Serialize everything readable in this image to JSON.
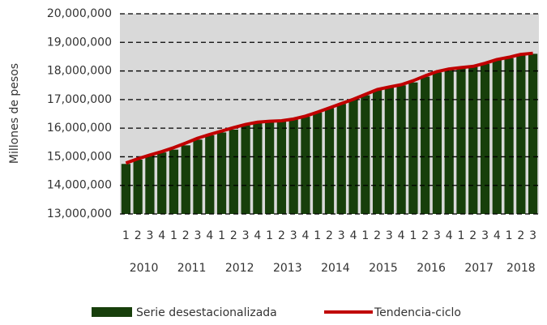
{
  "chart_data": {
    "type": "bar",
    "ylabel": "Millones de pesos",
    "categories": [
      "1",
      "2",
      "3",
      "4",
      "1",
      "2",
      "3",
      "4",
      "1",
      "2",
      "3",
      "4",
      "1",
      "2",
      "3",
      "4",
      "1",
      "2",
      "3",
      "4",
      "1",
      "2",
      "3",
      "4",
      "1",
      "2",
      "3",
      "4",
      "1",
      "2",
      "3",
      "4",
      "1",
      "2",
      "3"
    ],
    "years": [
      "2010",
      "2011",
      "2012",
      "2013",
      "2014",
      "2015",
      "2016",
      "2017",
      "2018"
    ],
    "series": [
      {
        "name": "Serie desestacionalizada",
        "type": "bar",
        "color": "#173f0b",
        "values": [
          14750000,
          14900000,
          15050000,
          15150000,
          15250000,
          15400000,
          15600000,
          15750000,
          15850000,
          15950000,
          16100000,
          16200000,
          16200000,
          16250000,
          16300000,
          16400000,
          16550000,
          16700000,
          16850000,
          17000000,
          17150000,
          17350000,
          17450000,
          17500000,
          17600000,
          17800000,
          17950000,
          18050000,
          18100000,
          18150000,
          18250000,
          18400000,
          18450000,
          18550000,
          18600000
        ]
      },
      {
        "name": "Tendencia-ciclo",
        "type": "line",
        "color": "#c00000",
        "values": [
          14780000,
          14930000,
          15060000,
          15180000,
          15320000,
          15480000,
          15650000,
          15780000,
          15900000,
          16020000,
          16130000,
          16210000,
          16240000,
          16260000,
          16320000,
          16420000,
          16560000,
          16710000,
          16860000,
          17010000,
          17180000,
          17350000,
          17440000,
          17520000,
          17660000,
          17830000,
          17980000,
          18070000,
          18120000,
          18160000,
          18270000,
          18400000,
          18480000,
          18580000,
          18620000
        ]
      }
    ],
    "ylim": [
      13000000,
      20000000
    ],
    "yticks": [
      {
        "value": 13000000,
        "label": "13,000,000"
      },
      {
        "value": 14000000,
        "label": "14,000,000"
      },
      {
        "value": 15000000,
        "label": "15,000,000"
      },
      {
        "value": 16000000,
        "label": "16,000,000"
      },
      {
        "value": 17000000,
        "label": "17,000,000"
      },
      {
        "value": 18000000,
        "label": "18,000,000"
      },
      {
        "value": 19000000,
        "label": "19,000,000"
      },
      {
        "value": 20000000,
        "label": "20,000,000"
      }
    ],
    "grid": true,
    "legend": "bottom",
    "plot_background": "#d9d9d9"
  }
}
